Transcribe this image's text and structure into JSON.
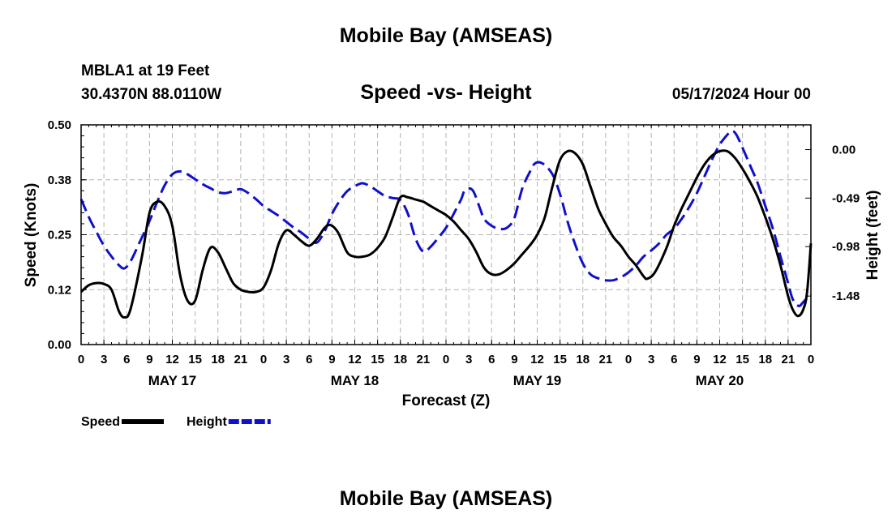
{
  "page_title": "Mobile Bay (AMSEAS)",
  "footer_title": "Mobile Bay (AMSEAS)",
  "station": {
    "name": "MBLA1 at 19 Feet",
    "coords": "30.4370N  88.0110W",
    "datetime": "05/17/2024 Hour 00"
  },
  "chart_data": {
    "type": "line",
    "title": "Speed -vs- Height",
    "xlabel": "Forecast (Z)",
    "ylabel": "Speed (Knots)",
    "y2label": "Height (feet)",
    "x_range_hours": [
      0,
      96
    ],
    "ylim": [
      0,
      0.5
    ],
    "y2lim": [
      -1.97,
      0.25
    ],
    "y_ticks": [
      0.0,
      0.125,
      0.25,
      0.375,
      0.5
    ],
    "y_tick_labels": [
      "0.00",
      "0.12",
      "0.25",
      "0.38",
      "0.50"
    ],
    "y2_ticks": [
      -1.48,
      -0.98,
      -0.49,
      0.0
    ],
    "y2_tick_labels": [
      "-1.48",
      "-0.98",
      "-0.49",
      "0.00"
    ],
    "x_tick_hours": [
      0,
      3,
      6,
      9,
      12,
      15,
      18,
      21,
      24,
      27,
      30,
      33,
      36,
      39,
      42,
      45,
      48,
      51,
      54,
      57,
      60,
      63,
      66,
      69,
      72,
      75,
      78,
      81,
      84,
      87,
      90,
      93,
      96
    ],
    "x_tick_labels": [
      "0",
      "3",
      "6",
      "9",
      "12",
      "15",
      "18",
      "21",
      "0",
      "3",
      "6",
      "9",
      "12",
      "15",
      "18",
      "21",
      "0",
      "3",
      "6",
      "9",
      "12",
      "15",
      "18",
      "21",
      "0",
      "3",
      "6",
      "9",
      "12",
      "15",
      "18",
      "21",
      "0"
    ],
    "day_labels": [
      {
        "label": "MAY 17",
        "hour": 12
      },
      {
        "label": "MAY 18",
        "hour": 36
      },
      {
        "label": "MAY 19",
        "hour": 60
      },
      {
        "label": "MAY 20",
        "hour": 84
      }
    ],
    "grid": true,
    "legend": [
      {
        "label": "Speed",
        "color": "#000000",
        "dash": false
      },
      {
        "label": "Height",
        "color": "#1010cc",
        "dash": true
      }
    ],
    "series": [
      {
        "name": "Speed",
        "axis": "left",
        "color": "#000000",
        "dash": false,
        "points": [
          [
            0,
            0.12
          ],
          [
            1,
            0.135
          ],
          [
            2,
            0.14
          ],
          [
            3,
            0.138
          ],
          [
            4,
            0.125
          ],
          [
            5,
            0.075
          ],
          [
            5.7,
            0.062
          ],
          [
            6.5,
            0.08
          ],
          [
            8,
            0.2
          ],
          [
            9,
            0.3
          ],
          [
            10,
            0.325
          ],
          [
            11,
            0.315
          ],
          [
            12,
            0.27
          ],
          [
            13,
            0.16
          ],
          [
            14,
            0.1
          ],
          [
            15,
            0.1
          ],
          [
            16,
            0.17
          ],
          [
            17,
            0.22
          ],
          [
            18,
            0.21
          ],
          [
            19,
            0.175
          ],
          [
            20,
            0.14
          ],
          [
            21,
            0.125
          ],
          [
            22,
            0.12
          ],
          [
            23,
            0.12
          ],
          [
            24,
            0.13
          ],
          [
            25,
            0.17
          ],
          [
            26,
            0.23
          ],
          [
            27,
            0.26
          ],
          [
            28,
            0.25
          ],
          [
            29,
            0.235
          ],
          [
            30,
            0.225
          ],
          [
            31,
            0.24
          ],
          [
            32,
            0.265
          ],
          [
            32.8,
            0.272
          ],
          [
            33.8,
            0.255
          ],
          [
            35,
            0.21
          ],
          [
            36,
            0.2
          ],
          [
            37,
            0.2
          ],
          [
            38,
            0.205
          ],
          [
            39,
            0.22
          ],
          [
            40,
            0.245
          ],
          [
            41,
            0.29
          ],
          [
            42,
            0.335
          ],
          [
            43,
            0.335
          ],
          [
            44,
            0.33
          ],
          [
            45,
            0.325
          ],
          [
            46,
            0.315
          ],
          [
            47,
            0.305
          ],
          [
            48,
            0.295
          ],
          [
            49,
            0.28
          ],
          [
            50,
            0.26
          ],
          [
            51,
            0.24
          ],
          [
            52,
            0.21
          ],
          [
            53,
            0.175
          ],
          [
            54,
            0.16
          ],
          [
            55,
            0.16
          ],
          [
            56,
            0.17
          ],
          [
            57,
            0.185
          ],
          [
            58,
            0.205
          ],
          [
            59,
            0.225
          ],
          [
            60,
            0.25
          ],
          [
            61,
            0.29
          ],
          [
            62,
            0.36
          ],
          [
            63,
            0.42
          ],
          [
            64,
            0.44
          ],
          [
            65,
            0.435
          ],
          [
            66,
            0.41
          ],
          [
            67,
            0.36
          ],
          [
            68,
            0.31
          ],
          [
            69,
            0.275
          ],
          [
            70,
            0.245
          ],
          [
            71,
            0.225
          ],
          [
            72,
            0.2
          ],
          [
            73,
            0.18
          ],
          [
            74,
            0.155
          ],
          [
            74.5,
            0.15
          ],
          [
            75.5,
            0.165
          ],
          [
            77,
            0.22
          ],
          [
            78,
            0.27
          ],
          [
            79,
            0.31
          ],
          [
            80,
            0.345
          ],
          [
            81,
            0.38
          ],
          [
            82,
            0.41
          ],
          [
            83,
            0.43
          ],
          [
            84,
            0.44
          ],
          [
            85,
            0.44
          ],
          [
            86,
            0.425
          ],
          [
            87,
            0.4
          ],
          [
            88,
            0.37
          ],
          [
            89,
            0.335
          ],
          [
            90,
            0.29
          ],
          [
            91,
            0.24
          ],
          [
            92,
            0.18
          ],
          [
            93,
            0.11
          ],
          [
            93.6,
            0.08
          ],
          [
            94.3,
            0.065
          ],
          [
            95,
            0.08
          ],
          [
            95.5,
            0.12
          ],
          [
            96,
            0.23
          ]
        ]
      },
      {
        "name": "Height",
        "axis": "right",
        "color": "#1010cc",
        "dash": true,
        "points": [
          [
            0,
            -0.5
          ],
          [
            1,
            -0.68
          ],
          [
            2,
            -0.83
          ],
          [
            3,
            -0.97
          ],
          [
            4,
            -1.08
          ],
          [
            5,
            -1.17
          ],
          [
            5.7,
            -1.2
          ],
          [
            6.5,
            -1.13
          ],
          [
            7.5,
            -0.97
          ],
          [
            9,
            -0.72
          ],
          [
            10,
            -0.53
          ],
          [
            11,
            -0.36
          ],
          [
            12,
            -0.25
          ],
          [
            13,
            -0.22
          ],
          [
            14,
            -0.25
          ],
          [
            15,
            -0.3
          ],
          [
            16,
            -0.35
          ],
          [
            17,
            -0.39
          ],
          [
            18,
            -0.43
          ],
          [
            19,
            -0.44
          ],
          [
            20,
            -0.42
          ],
          [
            21,
            -0.4
          ],
          [
            22,
            -0.44
          ],
          [
            23,
            -0.5
          ],
          [
            24,
            -0.57
          ],
          [
            25,
            -0.62
          ],
          [
            26,
            -0.67
          ],
          [
            27,
            -0.73
          ],
          [
            28,
            -0.79
          ],
          [
            29,
            -0.84
          ],
          [
            30,
            -0.9
          ],
          [
            31,
            -0.94
          ],
          [
            32,
            -0.83
          ],
          [
            33,
            -0.65
          ],
          [
            34,
            -0.52
          ],
          [
            35,
            -0.42
          ],
          [
            36,
            -0.37
          ],
          [
            37,
            -0.34
          ],
          [
            38,
            -0.37
          ],
          [
            39,
            -0.42
          ],
          [
            40,
            -0.47
          ],
          [
            41,
            -0.49
          ],
          [
            42,
            -0.51
          ],
          [
            43,
            -0.65
          ],
          [
            44,
            -0.9
          ],
          [
            45,
            -1.03
          ],
          [
            46,
            -0.98
          ],
          [
            47,
            -0.89
          ],
          [
            48,
            -0.79
          ],
          [
            49,
            -0.65
          ],
          [
            50,
            -0.5
          ],
          [
            50.5,
            -0.41
          ],
          [
            51.5,
            -0.41
          ],
          [
            52.5,
            -0.6
          ],
          [
            53,
            -0.7
          ],
          [
            54,
            -0.77
          ],
          [
            55,
            -0.8
          ],
          [
            56,
            -0.79
          ],
          [
            57,
            -0.69
          ],
          [
            58,
            -0.4
          ],
          [
            59,
            -0.23
          ],
          [
            59.7,
            -0.14
          ],
          [
            60.7,
            -0.14
          ],
          [
            62,
            -0.25
          ],
          [
            63,
            -0.45
          ],
          [
            64,
            -0.73
          ],
          [
            65,
            -0.96
          ],
          [
            66,
            -1.15
          ],
          [
            67,
            -1.26
          ],
          [
            68,
            -1.3
          ],
          [
            69,
            -1.32
          ],
          [
            70,
            -1.32
          ],
          [
            71,
            -1.29
          ],
          [
            72,
            -1.24
          ],
          [
            73,
            -1.17
          ],
          [
            74,
            -1.08
          ],
          [
            75,
            -1.02
          ],
          [
            76,
            -0.95
          ],
          [
            77,
            -0.86
          ],
          [
            78,
            -0.8
          ],
          [
            79,
            -0.7
          ],
          [
            80,
            -0.58
          ],
          [
            81,
            -0.44
          ],
          [
            82,
            -0.27
          ],
          [
            83,
            -0.1
          ],
          [
            84,
            0.05
          ],
          [
            85,
            0.15
          ],
          [
            85.6,
            0.19
          ],
          [
            86.2,
            0.15
          ],
          [
            87,
            0.02
          ],
          [
            88,
            -0.16
          ],
          [
            89,
            -0.34
          ],
          [
            90,
            -0.57
          ],
          [
            91,
            -0.8
          ],
          [
            92,
            -1.08
          ],
          [
            93,
            -1.35
          ],
          [
            93.6,
            -1.51
          ],
          [
            94.4,
            -1.58
          ],
          [
            95,
            -1.54
          ],
          [
            96,
            -1.46
          ]
        ]
      }
    ]
  }
}
